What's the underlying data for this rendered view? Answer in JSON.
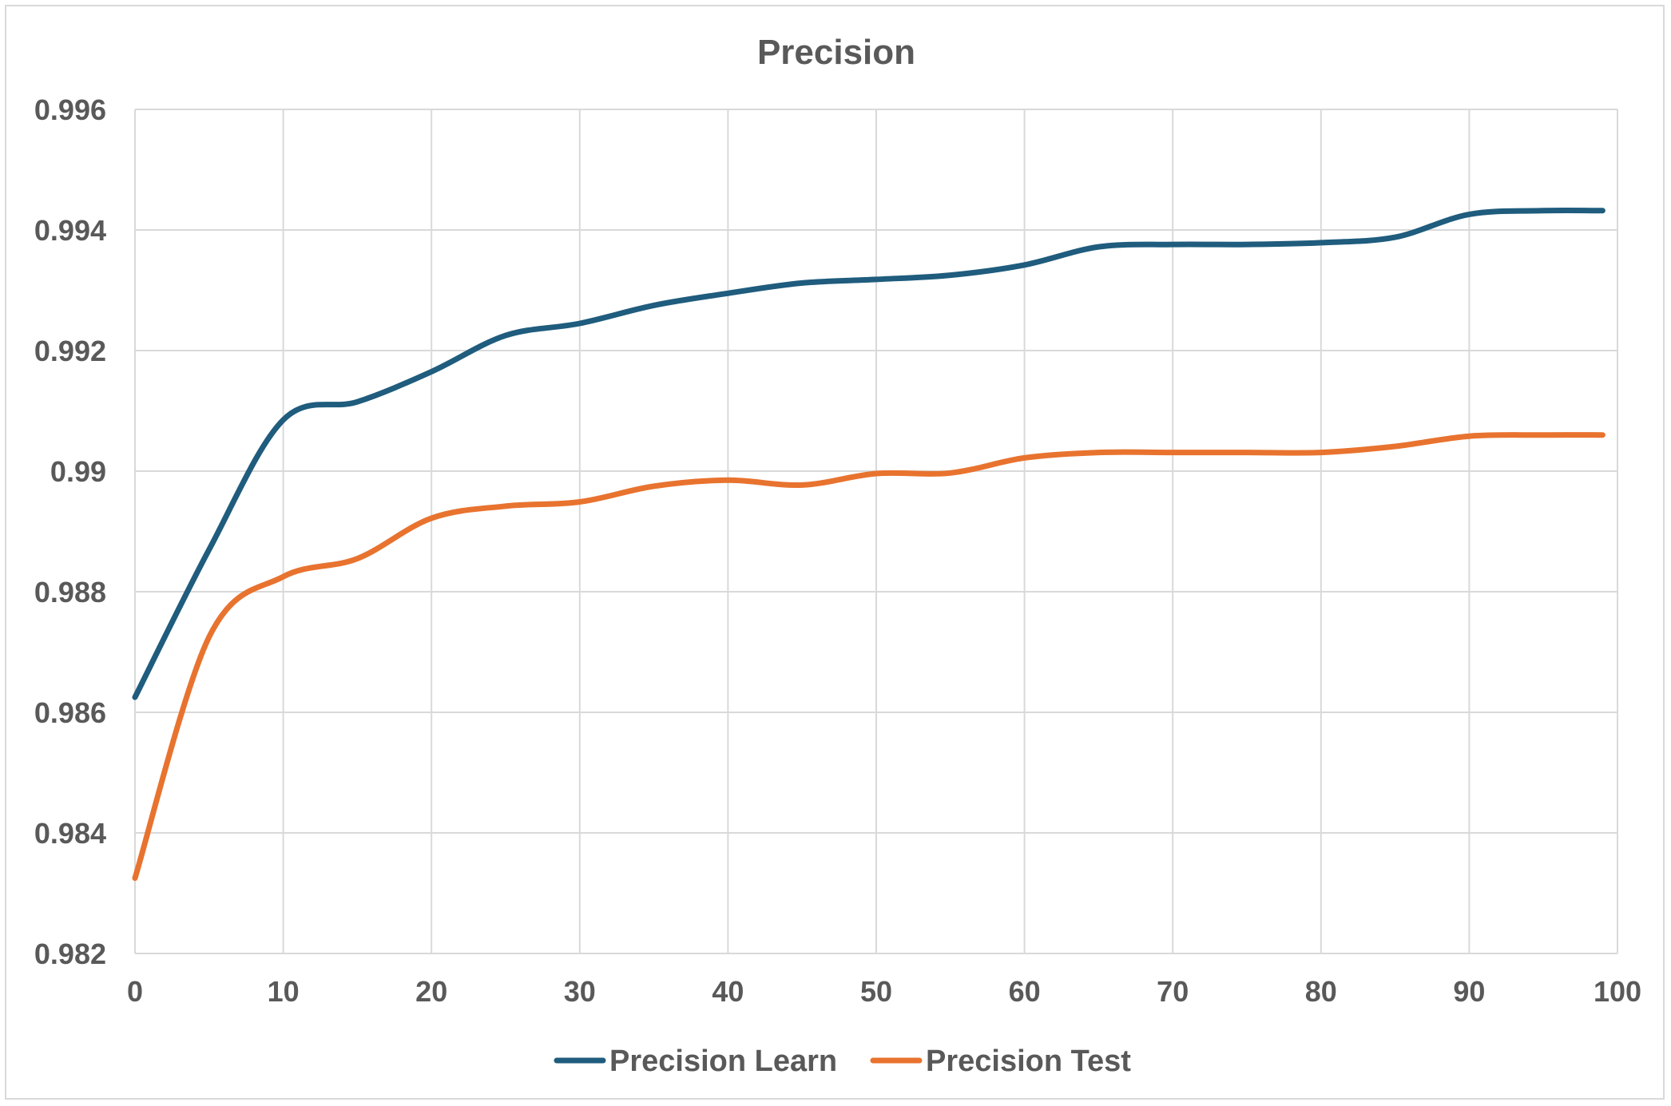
{
  "chart_data": {
    "type": "line",
    "title": "Precision",
    "xlabel": "",
    "ylabel": "",
    "xlim": [
      0,
      100
    ],
    "ylim": [
      0.982,
      0.996
    ],
    "x_ticks": [
      0,
      10,
      20,
      30,
      40,
      50,
      60,
      70,
      80,
      90,
      100
    ],
    "x_tick_labels": [
      "0",
      "10",
      "20",
      "30",
      "40",
      "50",
      "60",
      "70",
      "80",
      "90",
      "100"
    ],
    "y_ticks": [
      0.982,
      0.984,
      0.986,
      0.988,
      0.99,
      0.992,
      0.994,
      0.996
    ],
    "y_tick_labels": [
      "0.982",
      "0.984",
      "0.986",
      "0.988",
      "0.99",
      "0.992",
      "0.994",
      "0.996"
    ],
    "grid": true,
    "legend_position": "bottom",
    "x": [
      0,
      5,
      10,
      15,
      20,
      25,
      30,
      35,
      40,
      45,
      50,
      55,
      60,
      65,
      70,
      75,
      80,
      85,
      90,
      95,
      99
    ],
    "series": [
      {
        "name": "Precision Learn",
        "color": "#1f5c7d",
        "values": [
          0.98625,
          0.9887,
          0.99085,
          0.99115,
          0.99165,
          0.99225,
          0.99245,
          0.99275,
          0.99295,
          0.99312,
          0.99318,
          0.99325,
          0.99342,
          0.99372,
          0.99376,
          0.99376,
          0.99379,
          0.99388,
          0.99426,
          0.99432,
          0.99432
        ]
      },
      {
        "name": "Precision Test",
        "color": "#e8732f",
        "values": [
          0.98325,
          0.98725,
          0.98825,
          0.98855,
          0.98922,
          0.98942,
          0.98949,
          0.98975,
          0.98985,
          0.98977,
          0.98996,
          0.98997,
          0.99022,
          0.99031,
          0.99031,
          0.99031,
          0.99031,
          0.99041,
          0.99058,
          0.9906,
          0.9906
        ]
      }
    ]
  }
}
